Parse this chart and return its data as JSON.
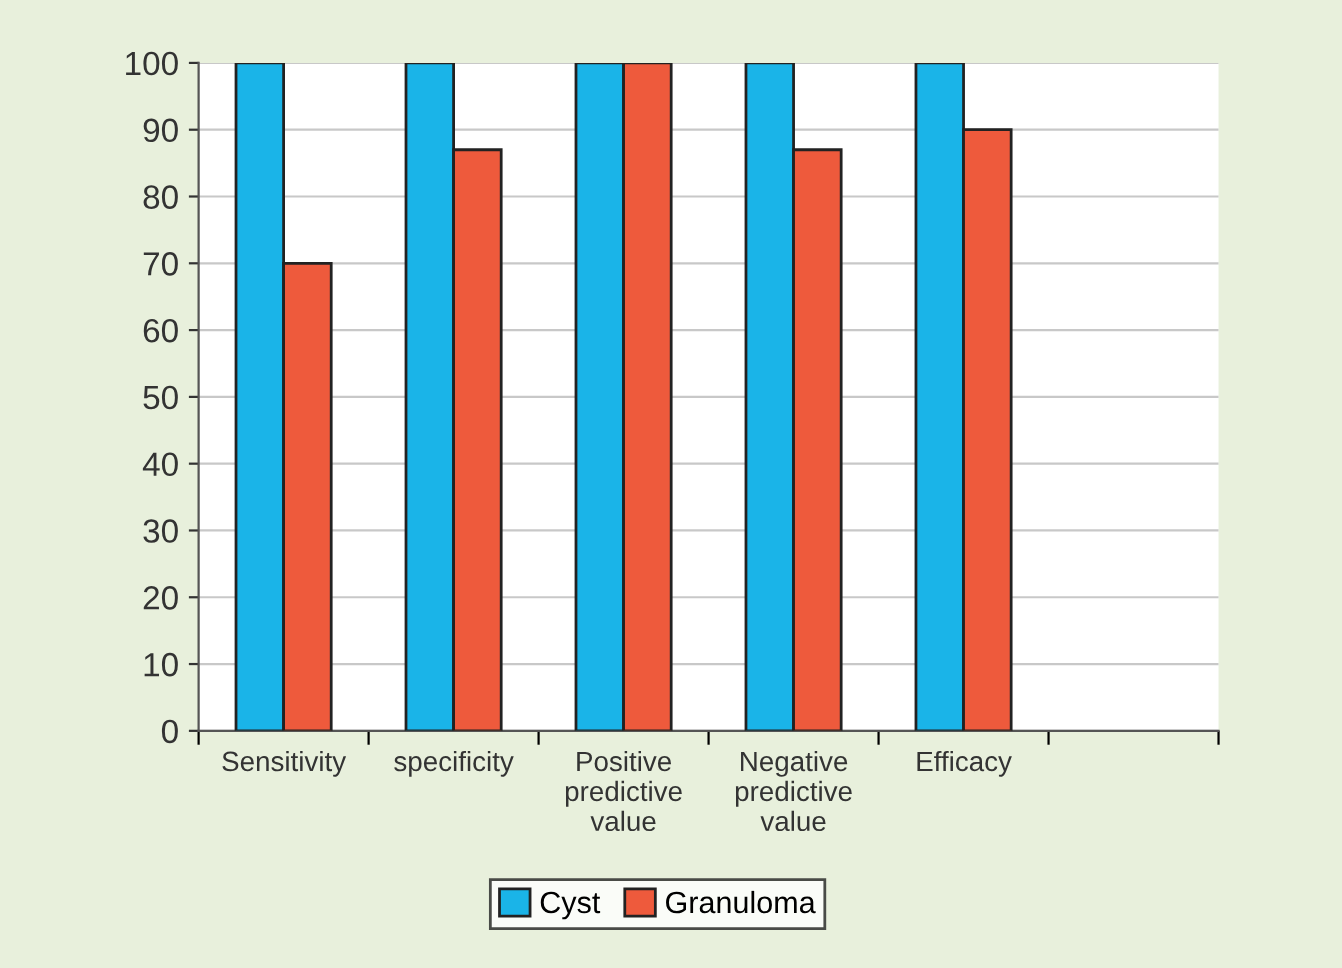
{
  "chart_data": {
    "type": "bar",
    "categories": [
      "Sensitivity",
      "specificity",
      "Positive\npredictive\nvalue",
      "Negative\npredictive\nvalue",
      "Efficacy",
      null
    ],
    "series": [
      {
        "name": "Cyst",
        "color": "#1ab4e8",
        "values": [
          100,
          100,
          100,
          100,
          100,
          null
        ]
      },
      {
        "name": "Granuloma",
        "color": "#ee5a3c",
        "values": [
          70,
          87,
          100,
          87,
          90,
          null
        ]
      }
    ],
    "ylim": [
      0,
      100
    ],
    "yticks": [
      0,
      10,
      20,
      30,
      40,
      50,
      60,
      70,
      80,
      90,
      100
    ],
    "grid": "y",
    "legend": "bottom"
  }
}
